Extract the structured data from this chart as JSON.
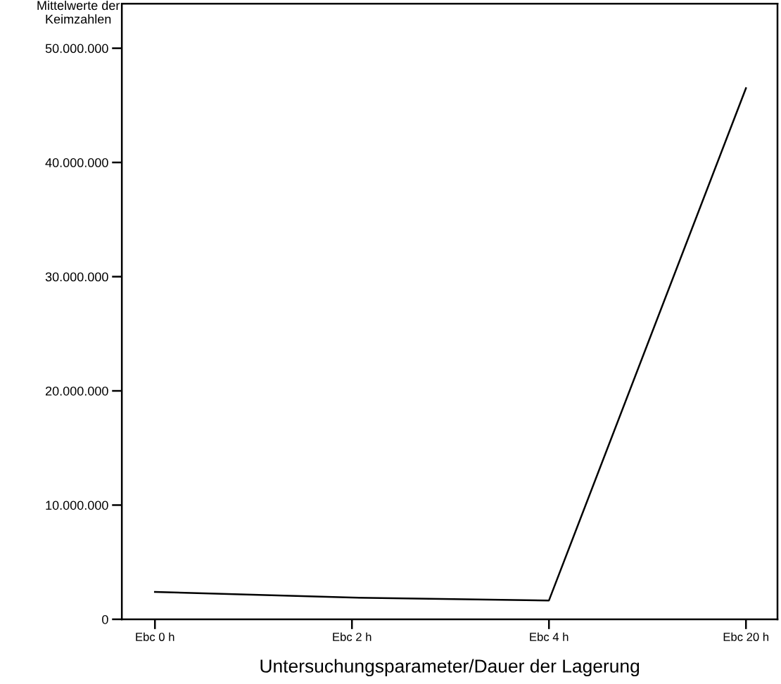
{
  "chart_data": {
    "type": "line",
    "categories": [
      "Ebc 0 h",
      "Ebc 2 h",
      "Ebc 4 h",
      "Ebc 20 h"
    ],
    "series": [
      {
        "color": "#000000",
        "values": [
          2400000,
          1900000,
          1650000,
          46500000
        ]
      }
    ],
    "xlabel": "Untersuchungsparameter/Dauer der Lagerung",
    "ylabel": "Mittelwerte der\nKeimzahlen",
    "ylim": [
      0,
      53900000
    ],
    "yticks": [
      {
        "value": 0,
        "label": "0"
      },
      {
        "value": 10000000,
        "label": "10.000.000"
      },
      {
        "value": 20000000,
        "label": "20.000.000"
      },
      {
        "value": 30000000,
        "label": "30.000.000"
      },
      {
        "value": 40000000,
        "label": "40.000.000"
      },
      {
        "value": 50000000,
        "label": "50.000.000"
      }
    ],
    "grid": false,
    "legend": false,
    "marker": "none",
    "line_style": "solid"
  }
}
